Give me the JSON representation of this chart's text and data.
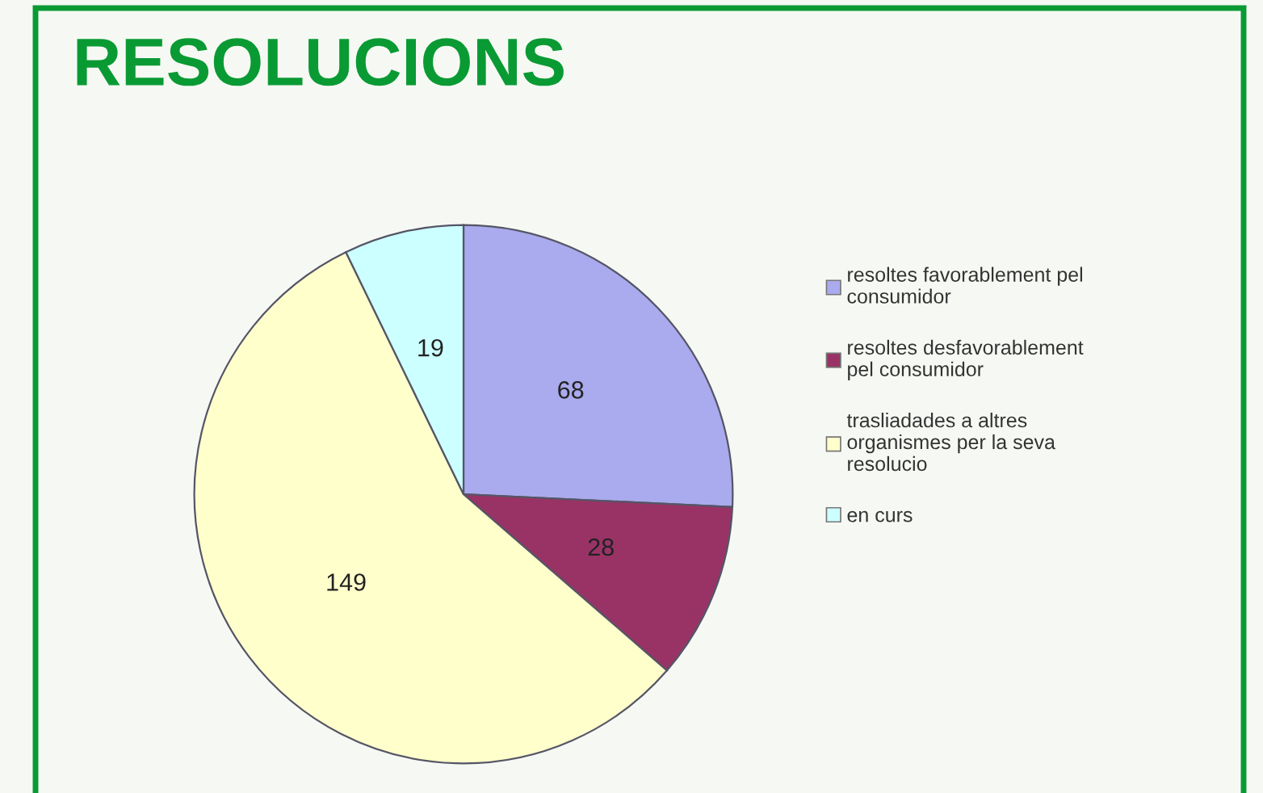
{
  "chart_data": {
    "type": "pie",
    "title": "RESOLUCIONS",
    "categories": [
      "resoltes favorablement pel\nconsumidor",
      "resoltes desfavorablement\npel consumidor",
      "trasliadades a altres\norganismes per la seva\nresolucio",
      "en curs"
    ],
    "values": [
      68,
      28,
      149,
      19
    ],
    "colors": [
      "#aaaaee",
      "#993366",
      "#ffffcc",
      "#ccffff"
    ],
    "data_labels": true,
    "legend": "right"
  }
}
